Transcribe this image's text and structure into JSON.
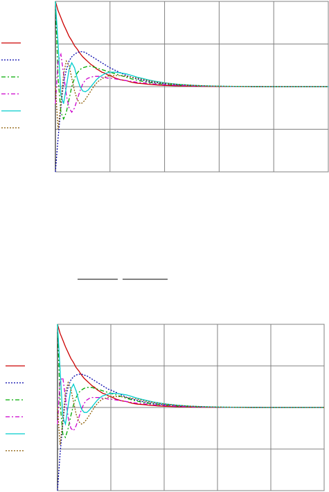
{
  "colors": {
    "grid": "#808080",
    "axis": "#000000",
    "background": "#ffffff"
  },
  "chart_data": [
    {
      "type": "line",
      "title": "",
      "xlabel": "",
      "ylabel": "",
      "grid": true,
      "legend": "left",
      "xlim": [
        0,
        10
      ],
      "ylim": [
        -1,
        1
      ],
      "x": [
        0,
        0.1,
        0.2,
        0.3,
        0.4,
        0.5,
        0.6,
        0.7,
        0.8,
        0.9,
        1.0,
        1.1,
        1.2,
        1.3,
        1.4,
        1.5,
        1.6,
        1.7,
        1.8,
        1.9,
        2.0,
        2.2,
        2.4,
        2.6,
        2.8,
        3.0,
        3.2,
        3.4,
        3.6,
        3.8,
        4.0,
        4.5,
        5.0,
        5.5,
        6.0,
        6.5,
        7.0,
        8.0,
        9.0,
        10.0
      ],
      "series": [
        {
          "color": "#cc0000",
          "dash": "solid",
          "values": [
            1.0,
            0.89,
            0.81,
            0.73,
            0.66,
            0.59,
            0.54,
            0.48,
            0.44,
            0.39,
            0.35,
            0.32,
            0.29,
            0.26,
            0.24,
            0.21,
            0.19,
            0.17,
            0.16,
            0.14,
            0.13,
            0.1,
            0.08,
            0.07,
            0.05,
            0.04,
            0.035,
            0.028,
            0.023,
            0.018,
            0.015,
            0.009,
            0.005,
            0.003,
            0.002,
            0.001,
            0.0,
            0.0,
            0.0,
            0.0
          ]
        },
        {
          "color": "#0000aa",
          "dash": "dot",
          "values": [
            -1.0,
            -0.6,
            -0.25,
            0.05,
            0.2,
            0.3,
            0.35,
            0.38,
            0.4,
            0.41,
            0.41,
            0.4,
            0.38,
            0.36,
            0.34,
            0.32,
            0.3,
            0.28,
            0.26,
            0.24,
            0.22,
            0.19,
            0.16,
            0.13,
            0.11,
            0.09,
            0.075,
            0.062,
            0.05,
            0.042,
            0.035,
            0.02,
            0.012,
            0.007,
            0.004,
            0.002,
            0.001,
            0.0,
            0.0,
            0.0
          ]
        },
        {
          "color": "#00aa00",
          "dash": "dashdot",
          "values": [
            1.0,
            0.1,
            -0.3,
            -0.38,
            -0.3,
            -0.15,
            0.0,
            0.1,
            0.16,
            0.2,
            0.22,
            0.23,
            0.24,
            0.24,
            0.23,
            0.22,
            0.21,
            0.2,
            0.19,
            0.18,
            0.17,
            0.15,
            0.13,
            0.11,
            0.09,
            0.075,
            0.062,
            0.05,
            0.042,
            0.034,
            0.028,
            0.017,
            0.01,
            0.006,
            0.003,
            0.002,
            0.001,
            0.0,
            0.0,
            0.0
          ]
        },
        {
          "color": "#cc00cc",
          "dash": "dashdot",
          "values": [
            -0.2,
            0.3,
            0.38,
            0.15,
            -0.1,
            -0.25,
            -0.3,
            -0.25,
            -0.15,
            -0.05,
            0.03,
            0.08,
            0.1,
            0.11,
            0.12,
            0.12,
            0.12,
            0.11,
            0.11,
            0.1,
            0.1,
            0.09,
            0.08,
            0.07,
            0.06,
            0.05,
            0.045,
            0.038,
            0.032,
            0.027,
            0.023,
            0.014,
            0.009,
            0.005,
            0.003,
            0.002,
            0.001,
            0.0,
            0.0,
            0.0
          ]
        },
        {
          "color": "#00cccc",
          "dash": "solid",
          "values": [
            1.0,
            0.5,
            -0.1,
            -0.2,
            0.0,
            0.2,
            0.28,
            0.22,
            0.1,
            0.0,
            -0.05,
            -0.06,
            -0.04,
            0.0,
            0.04,
            0.08,
            0.11,
            0.13,
            0.15,
            0.16,
            0.17,
            0.17,
            0.16,
            0.15,
            0.13,
            0.11,
            0.095,
            0.08,
            0.066,
            0.055,
            0.045,
            0.027,
            0.016,
            0.009,
            0.005,
            0.003,
            0.001,
            0.0,
            0.0,
            0.0
          ]
        },
        {
          "color": "#8b5a00",
          "dash": "dot",
          "values": [
            0.0,
            -0.5,
            -0.2,
            0.15,
            0.3,
            0.25,
            0.1,
            -0.05,
            -0.15,
            -0.2,
            -0.19,
            -0.15,
            -0.1,
            -0.05,
            0.0,
            0.04,
            0.07,
            0.09,
            0.11,
            0.12,
            0.13,
            0.13,
            0.13,
            0.12,
            0.11,
            0.1,
            0.085,
            0.072,
            0.06,
            0.05,
            0.042,
            0.026,
            0.016,
            0.009,
            0.005,
            0.003,
            0.001,
            0.0,
            0.0,
            0.0
          ]
        }
      ]
    },
    {
      "type": "line",
      "title": "",
      "xlabel": "",
      "ylabel": "",
      "grid": true,
      "legend": "left",
      "xlim": [
        0,
        10
      ],
      "ylim": [
        -1,
        1
      ],
      "x": [
        0,
        0.1,
        0.2,
        0.3,
        0.4,
        0.5,
        0.6,
        0.7,
        0.8,
        0.9,
        1.0,
        1.1,
        1.2,
        1.3,
        1.4,
        1.5,
        1.6,
        1.7,
        1.8,
        1.9,
        2.0,
        2.2,
        2.4,
        2.6,
        2.8,
        3.0,
        3.2,
        3.4,
        3.6,
        3.8,
        4.0,
        4.5,
        5.0,
        5.5,
        6.0,
        6.5,
        7.0,
        8.0,
        9.0,
        10.0
      ],
      "series": [
        {
          "color": "#cc0000",
          "dash": "solid",
          "values": [
            1.0,
            0.89,
            0.81,
            0.73,
            0.66,
            0.59,
            0.54,
            0.48,
            0.44,
            0.39,
            0.35,
            0.32,
            0.29,
            0.26,
            0.24,
            0.21,
            0.19,
            0.17,
            0.16,
            0.14,
            0.13,
            0.1,
            0.08,
            0.07,
            0.05,
            0.04,
            0.035,
            0.028,
            0.023,
            0.018,
            0.015,
            0.009,
            0.005,
            0.003,
            0.002,
            0.001,
            0.0,
            0.0,
            0.0,
            0.0
          ]
        },
        {
          "color": "#0000aa",
          "dash": "dot",
          "values": [
            -1.0,
            -0.55,
            -0.2,
            0.1,
            0.25,
            0.33,
            0.37,
            0.39,
            0.4,
            0.4,
            0.39,
            0.38,
            0.36,
            0.34,
            0.32,
            0.3,
            0.28,
            0.26,
            0.24,
            0.22,
            0.21,
            0.18,
            0.15,
            0.12,
            0.1,
            0.085,
            0.07,
            0.058,
            0.048,
            0.04,
            0.033,
            0.019,
            0.011,
            0.006,
            0.003,
            0.002,
            0.001,
            0.0,
            0.0,
            0.0
          ]
        },
        {
          "color": "#00aa00",
          "dash": "dashdot",
          "values": [
            1.0,
            0.05,
            -0.32,
            -0.36,
            -0.25,
            -0.1,
            0.03,
            0.12,
            0.18,
            0.21,
            0.23,
            0.24,
            0.24,
            0.24,
            0.23,
            0.22,
            0.21,
            0.2,
            0.19,
            0.18,
            0.17,
            0.15,
            0.13,
            0.11,
            0.09,
            0.075,
            0.062,
            0.05,
            0.042,
            0.034,
            0.028,
            0.017,
            0.01,
            0.006,
            0.003,
            0.002,
            0.001,
            0.0,
            0.0,
            0.0
          ]
        },
        {
          "color": "#cc00cc",
          "dash": "dashdot",
          "values": [
            -0.2,
            0.32,
            0.36,
            0.12,
            -0.12,
            -0.25,
            -0.28,
            -0.22,
            -0.12,
            -0.02,
            0.05,
            0.09,
            0.11,
            0.12,
            0.12,
            0.12,
            0.12,
            0.11,
            0.11,
            0.1,
            0.1,
            0.09,
            0.08,
            0.07,
            0.06,
            0.05,
            0.045,
            0.038,
            0.032,
            0.027,
            0.023,
            0.014,
            0.009,
            0.005,
            0.003,
            0.002,
            0.001,
            0.0,
            0.0,
            0.0
          ]
        },
        {
          "color": "#00cccc",
          "dash": "solid",
          "values": [
            1.0,
            0.45,
            -0.12,
            -0.2,
            0.02,
            0.22,
            0.28,
            0.2,
            0.08,
            -0.02,
            -0.06,
            -0.06,
            -0.03,
            0.01,
            0.05,
            0.09,
            0.12,
            0.14,
            0.15,
            0.16,
            0.17,
            0.17,
            0.16,
            0.15,
            0.13,
            0.11,
            0.095,
            0.08,
            0.066,
            0.055,
            0.045,
            0.027,
            0.016,
            0.009,
            0.005,
            0.003,
            0.001,
            0.0,
            0.0,
            0.0
          ]
        },
        {
          "color": "#8b5a00",
          "dash": "dot",
          "values": [
            0.0,
            -0.45,
            -0.15,
            0.18,
            0.3,
            0.22,
            0.07,
            -0.08,
            -0.17,
            -0.2,
            -0.18,
            -0.14,
            -0.09,
            -0.04,
            0.01,
            0.05,
            0.08,
            0.1,
            0.11,
            0.12,
            0.13,
            0.13,
            0.13,
            0.12,
            0.11,
            0.1,
            0.085,
            0.072,
            0.06,
            0.05,
            0.042,
            0.026,
            0.016,
            0.009,
            0.005,
            0.003,
            0.001,
            0.0,
            0.0,
            0.0
          ]
        }
      ]
    }
  ]
}
